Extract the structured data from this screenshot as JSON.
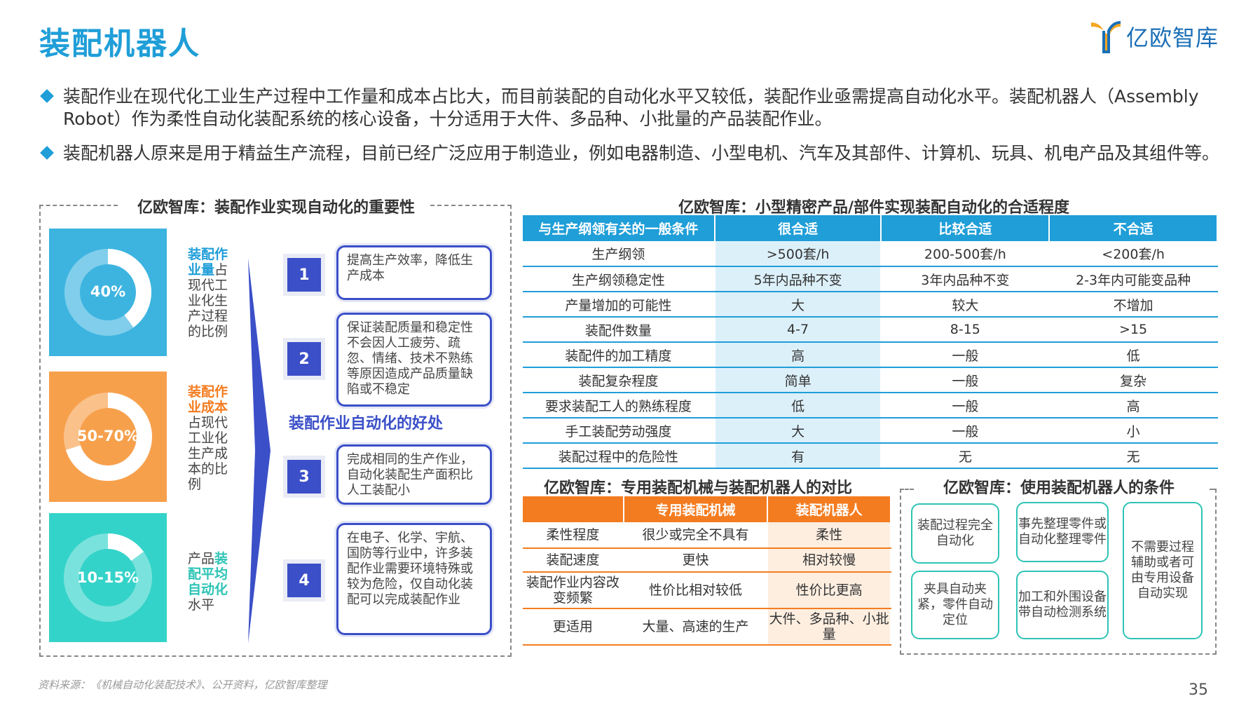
{
  "title": "装配机器人",
  "brand": {
    "name": "亿欧智库"
  },
  "bullets": [
    "装配作业在现代化工业生产过程中工作量和成本占比大，而目前装配的自动化水平又较低，装配作业亟需提高自动化水平。装配机器人（Assembly Robot）作为柔性自动化装配系统的核心设备，十分适用于大件、多品种、小批量的产品装配作业。",
    "装配机器人原来是用于精益生产流程，目前已经广泛应用于制造业，例如电器制造、小型电机、汽车及其部件、计算机、玩具、机电产品及其组件等。"
  ],
  "left_panel": {
    "title": "亿欧智库：装配作业实现自动化的重要性",
    "stats": [
      {
        "value": "40%",
        "fill": 0.4,
        "color": "#3db4e0",
        "desc_hl": "装配作业量",
        "desc": "占现代工业化生产过程的比例"
      },
      {
        "value": "50-70%",
        "fill": 0.7,
        "color": "#f7a04c",
        "desc_hl": "装配作业成本",
        "desc": "占现代工业化生产成本的比例"
      },
      {
        "value": "10-15%",
        "fill": 0.15,
        "color": "#34d3c9",
        "desc_pre": "产品",
        "desc_hl": "装配平均自动化",
        "desc": "水平"
      }
    ],
    "benefit_label": "装配作业自动化的好处",
    "benefits": [
      {
        "num": "1",
        "text": "提高生产效率，降低生产成本"
      },
      {
        "num": "2",
        "text": "保证装配质量和稳定性不会因人工疲劳、疏忽、情绪、技术不熟练等原因造成产品质量缺陷或不稳定"
      },
      {
        "num": "3",
        "text": "完成相同的生产作业，自动化装配生产面积比人工装配小"
      },
      {
        "num": "4",
        "text": "在电子、化学、宇航、国防等行业中，许多装配作业需要环境特殊或较为危险，仅自动化装配可以完成装配作业"
      }
    ]
  },
  "table1": {
    "title": "亿欧智库：小型精密产品/部件实现装配自动化的合适程度",
    "headers": [
      "与生产纲领有关的一般条件",
      "很合适",
      "比较合适",
      "不合适"
    ],
    "rows": [
      [
        "生产纲领",
        ">500套/h",
        "200-500套/h",
        "<200套/h"
      ],
      [
        "生产纲领稳定性",
        "5年内品种不变",
        "3年内品种不变",
        "2-3年内可能变品种"
      ],
      [
        "产量增加的可能性",
        "大",
        "较大",
        "不增加"
      ],
      [
        "装配件数量",
        "4-7",
        "8-15",
        ">15"
      ],
      [
        "装配件的加工精度",
        "高",
        "一般",
        "低"
      ],
      [
        "装配复杂程度",
        "简单",
        "一般",
        "复杂"
      ],
      [
        "要求装配工人的熟练程度",
        "低",
        "一般",
        "高"
      ],
      [
        "手工装配劳动强度",
        "大",
        "一般",
        "小"
      ],
      [
        "装配过程中的危险性",
        "有",
        "无",
        "无"
      ]
    ]
  },
  "table2": {
    "title": "亿欧智库：专用装配机械与装配机器人的对比",
    "headers": [
      "",
      "专用装配机械",
      "装配机器人"
    ],
    "rows": [
      [
        "柔性程度",
        "很少或完全不具有",
        "柔性"
      ],
      [
        "装配速度",
        "更快",
        "相对较慢"
      ],
      [
        "装配作业内容改变频繁",
        "性价比相对较低",
        "性价比更高"
      ],
      [
        "更适用",
        "大量、高速的生产",
        "大件、多品种、小批量"
      ]
    ]
  },
  "conditions": {
    "title": "亿欧智库：使用装配机器人的条件",
    "items": [
      "装配过程完全自动化",
      "事先整理零件或自动化整理零件",
      "不需要过程辅助或者可由专用设备自动实现",
      "夹具自动夹紧，零件自动定位",
      "加工和外围设备带自动检测系统"
    ]
  },
  "source": "资料来源：《机械自动化装配技术》、公开资料，亿欧智库整理",
  "page_number": "35",
  "colors": {
    "accent_blue": "#1f9ed8",
    "indigo": "#3b4fc8",
    "orange": "#f47c20",
    "teal": "#2ec4b6"
  }
}
